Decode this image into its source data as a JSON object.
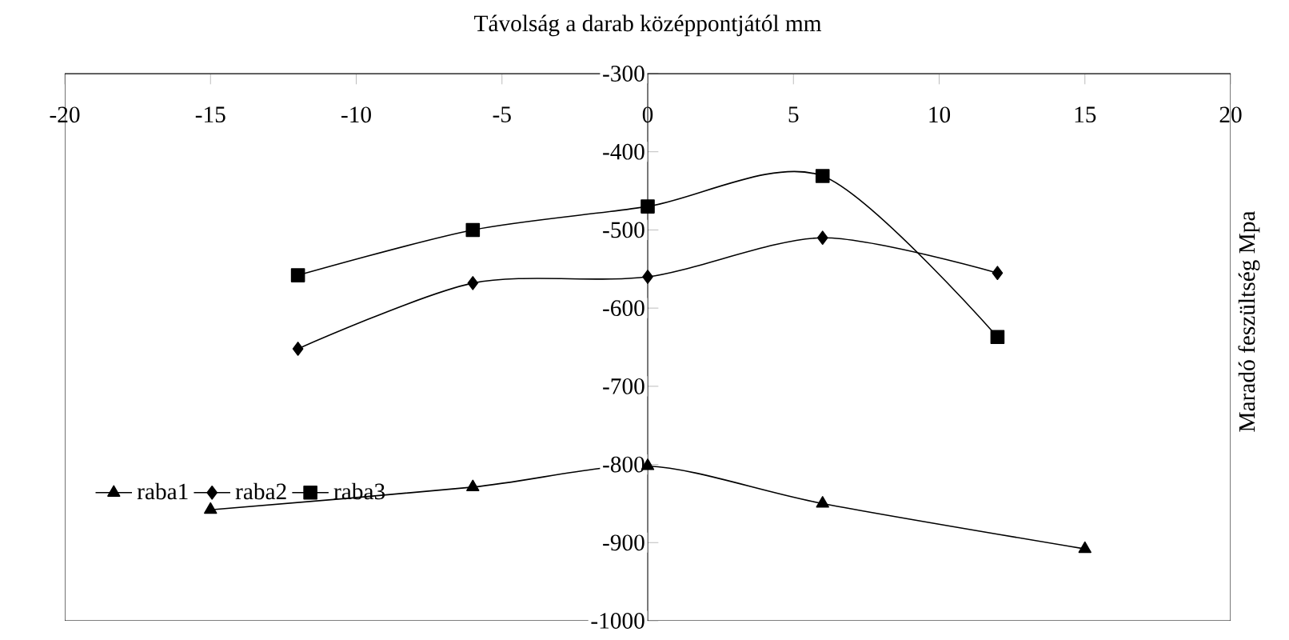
{
  "chart_data": {
    "type": "line",
    "xlabel": "Távolság a darab középpontjától mm",
    "ylabel": "Maradó feszültség Mpa",
    "xlim": [
      -20,
      20
    ],
    "xticks": [
      -20,
      -15,
      -10,
      -5,
      0,
      5,
      10,
      15,
      20
    ],
    "ylim": [
      -1000,
      -300
    ],
    "yticks": [
      -1000,
      -900,
      -800,
      -700,
      -600,
      -500,
      -400,
      -300
    ],
    "legend": "bottom left",
    "grid": false,
    "series": [
      {
        "name": "raba1",
        "color": "#000000",
        "marker": "triangle",
        "x": [
          -15,
          -6,
          0,
          6,
          15
        ],
        "values": [
          -858,
          -829,
          -802,
          -850,
          -908
        ]
      },
      {
        "name": "raba2",
        "color": "#000000",
        "marker": "diamond",
        "x": [
          -12,
          -6,
          0,
          6,
          12
        ],
        "values": [
          -652,
          -568,
          -560,
          -510,
          -555
        ]
      },
      {
        "name": "raba3",
        "color": "#000000",
        "marker": "square",
        "x": [
          -12,
          -6,
          0,
          6,
          12
        ],
        "values": [
          -558,
          -500,
          -470,
          -431,
          -637
        ]
      }
    ]
  }
}
